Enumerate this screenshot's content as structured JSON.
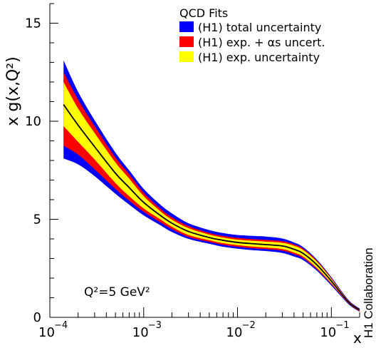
{
  "chart_data": {
    "type": "area",
    "xscale": "log",
    "xlim": [
      0.0001,
      0.2
    ],
    "ylim": [
      0,
      16
    ],
    "xlabel": "x",
    "ylabel": "x g(x,Q²)",
    "xticks": [
      {
        "value": 0.0001,
        "label": "10",
        "exp": "−4"
      },
      {
        "value": 0.001,
        "label": "10",
        "exp": "−3"
      },
      {
        "value": 0.01,
        "label": "10",
        "exp": "−2"
      },
      {
        "value": 0.1,
        "label": "10",
        "exp": "−1"
      }
    ],
    "yticks": [
      {
        "value": 0,
        "label": "0"
      },
      {
        "value": 5,
        "label": "5"
      },
      {
        "value": 10,
        "label": "10"
      },
      {
        "value": 15,
        "label": "15"
      }
    ],
    "legend": {
      "title": "QCD Fits",
      "placement": "top-right",
      "entries": [
        {
          "label": "(H1) total uncertainty",
          "color": "#0000ff"
        },
        {
          "label": "(H1) exp. + αs uncert.",
          "color": "#ff0000"
        },
        {
          "label": "(H1) exp. uncertainty",
          "color": "#ffff00"
        }
      ]
    },
    "annotation": "Q²=5 GeV²",
    "side_label": "H1 Collaboration",
    "x": [
      0.00014,
      0.0002,
      0.0003,
      0.0005,
      0.0007,
      0.001,
      0.0015,
      0.002,
      0.003,
      0.005,
      0.007,
      0.01,
      0.015,
      0.02,
      0.03,
      0.04,
      0.05,
      0.07,
      0.1,
      0.13,
      0.16,
      0.2
    ],
    "series": [
      {
        "name": "(H1) total uncertainty",
        "color": "#0000ff",
        "upper": [
          13.1,
          11.5,
          10.05,
          8.4,
          7.5,
          6.55,
          5.75,
          5.3,
          4.8,
          4.45,
          4.3,
          4.2,
          4.15,
          4.12,
          4.02,
          3.82,
          3.58,
          2.95,
          2.05,
          1.3,
          0.78,
          0.45
        ],
        "lower": [
          8.1,
          7.8,
          7.2,
          6.3,
          5.75,
          5.2,
          4.7,
          4.35,
          4.0,
          3.75,
          3.6,
          3.5,
          3.42,
          3.38,
          3.28,
          3.1,
          2.92,
          2.38,
          1.62,
          1.02,
          0.58,
          0.28
        ]
      },
      {
        "name": "(H1) exp. + αs uncert.",
        "color": "#ff0000",
        "upper": [
          12.5,
          11.1,
          9.75,
          8.15,
          7.3,
          6.35,
          5.55,
          5.1,
          4.65,
          4.3,
          4.15,
          4.05,
          3.98,
          3.95,
          3.88,
          3.72,
          3.5,
          2.9,
          2.0,
          1.26,
          0.75,
          0.42
        ],
        "lower": [
          8.75,
          8.3,
          7.55,
          6.55,
          5.95,
          5.38,
          4.85,
          4.5,
          4.1,
          3.85,
          3.7,
          3.6,
          3.52,
          3.48,
          3.4,
          3.22,
          3.02,
          2.45,
          1.68,
          1.06,
          0.61,
          0.3
        ]
      },
      {
        "name": "(H1) exp. uncertainty",
        "color": "#ffff00",
        "upper": [
          12.0,
          10.65,
          9.4,
          7.9,
          7.08,
          6.18,
          5.42,
          4.98,
          4.55,
          4.22,
          4.07,
          3.96,
          3.9,
          3.86,
          3.8,
          3.65,
          3.43,
          2.84,
          1.96,
          1.23,
          0.73,
          0.4
        ],
        "lower": [
          9.75,
          8.95,
          8.05,
          6.85,
          6.18,
          5.55,
          5.0,
          4.62,
          4.2,
          3.93,
          3.78,
          3.68,
          3.6,
          3.56,
          3.48,
          3.3,
          3.1,
          2.52,
          1.74,
          1.1,
          0.64,
          0.33
        ]
      },
      {
        "name": "central",
        "color": "#000000",
        "values": [
          10.85,
          9.8,
          8.7,
          7.35,
          6.62,
          5.86,
          5.2,
          4.8,
          4.38,
          4.07,
          3.93,
          3.82,
          3.75,
          3.71,
          3.64,
          3.47,
          3.26,
          2.68,
          1.85,
          1.16,
          0.68,
          0.37
        ]
      }
    ]
  }
}
